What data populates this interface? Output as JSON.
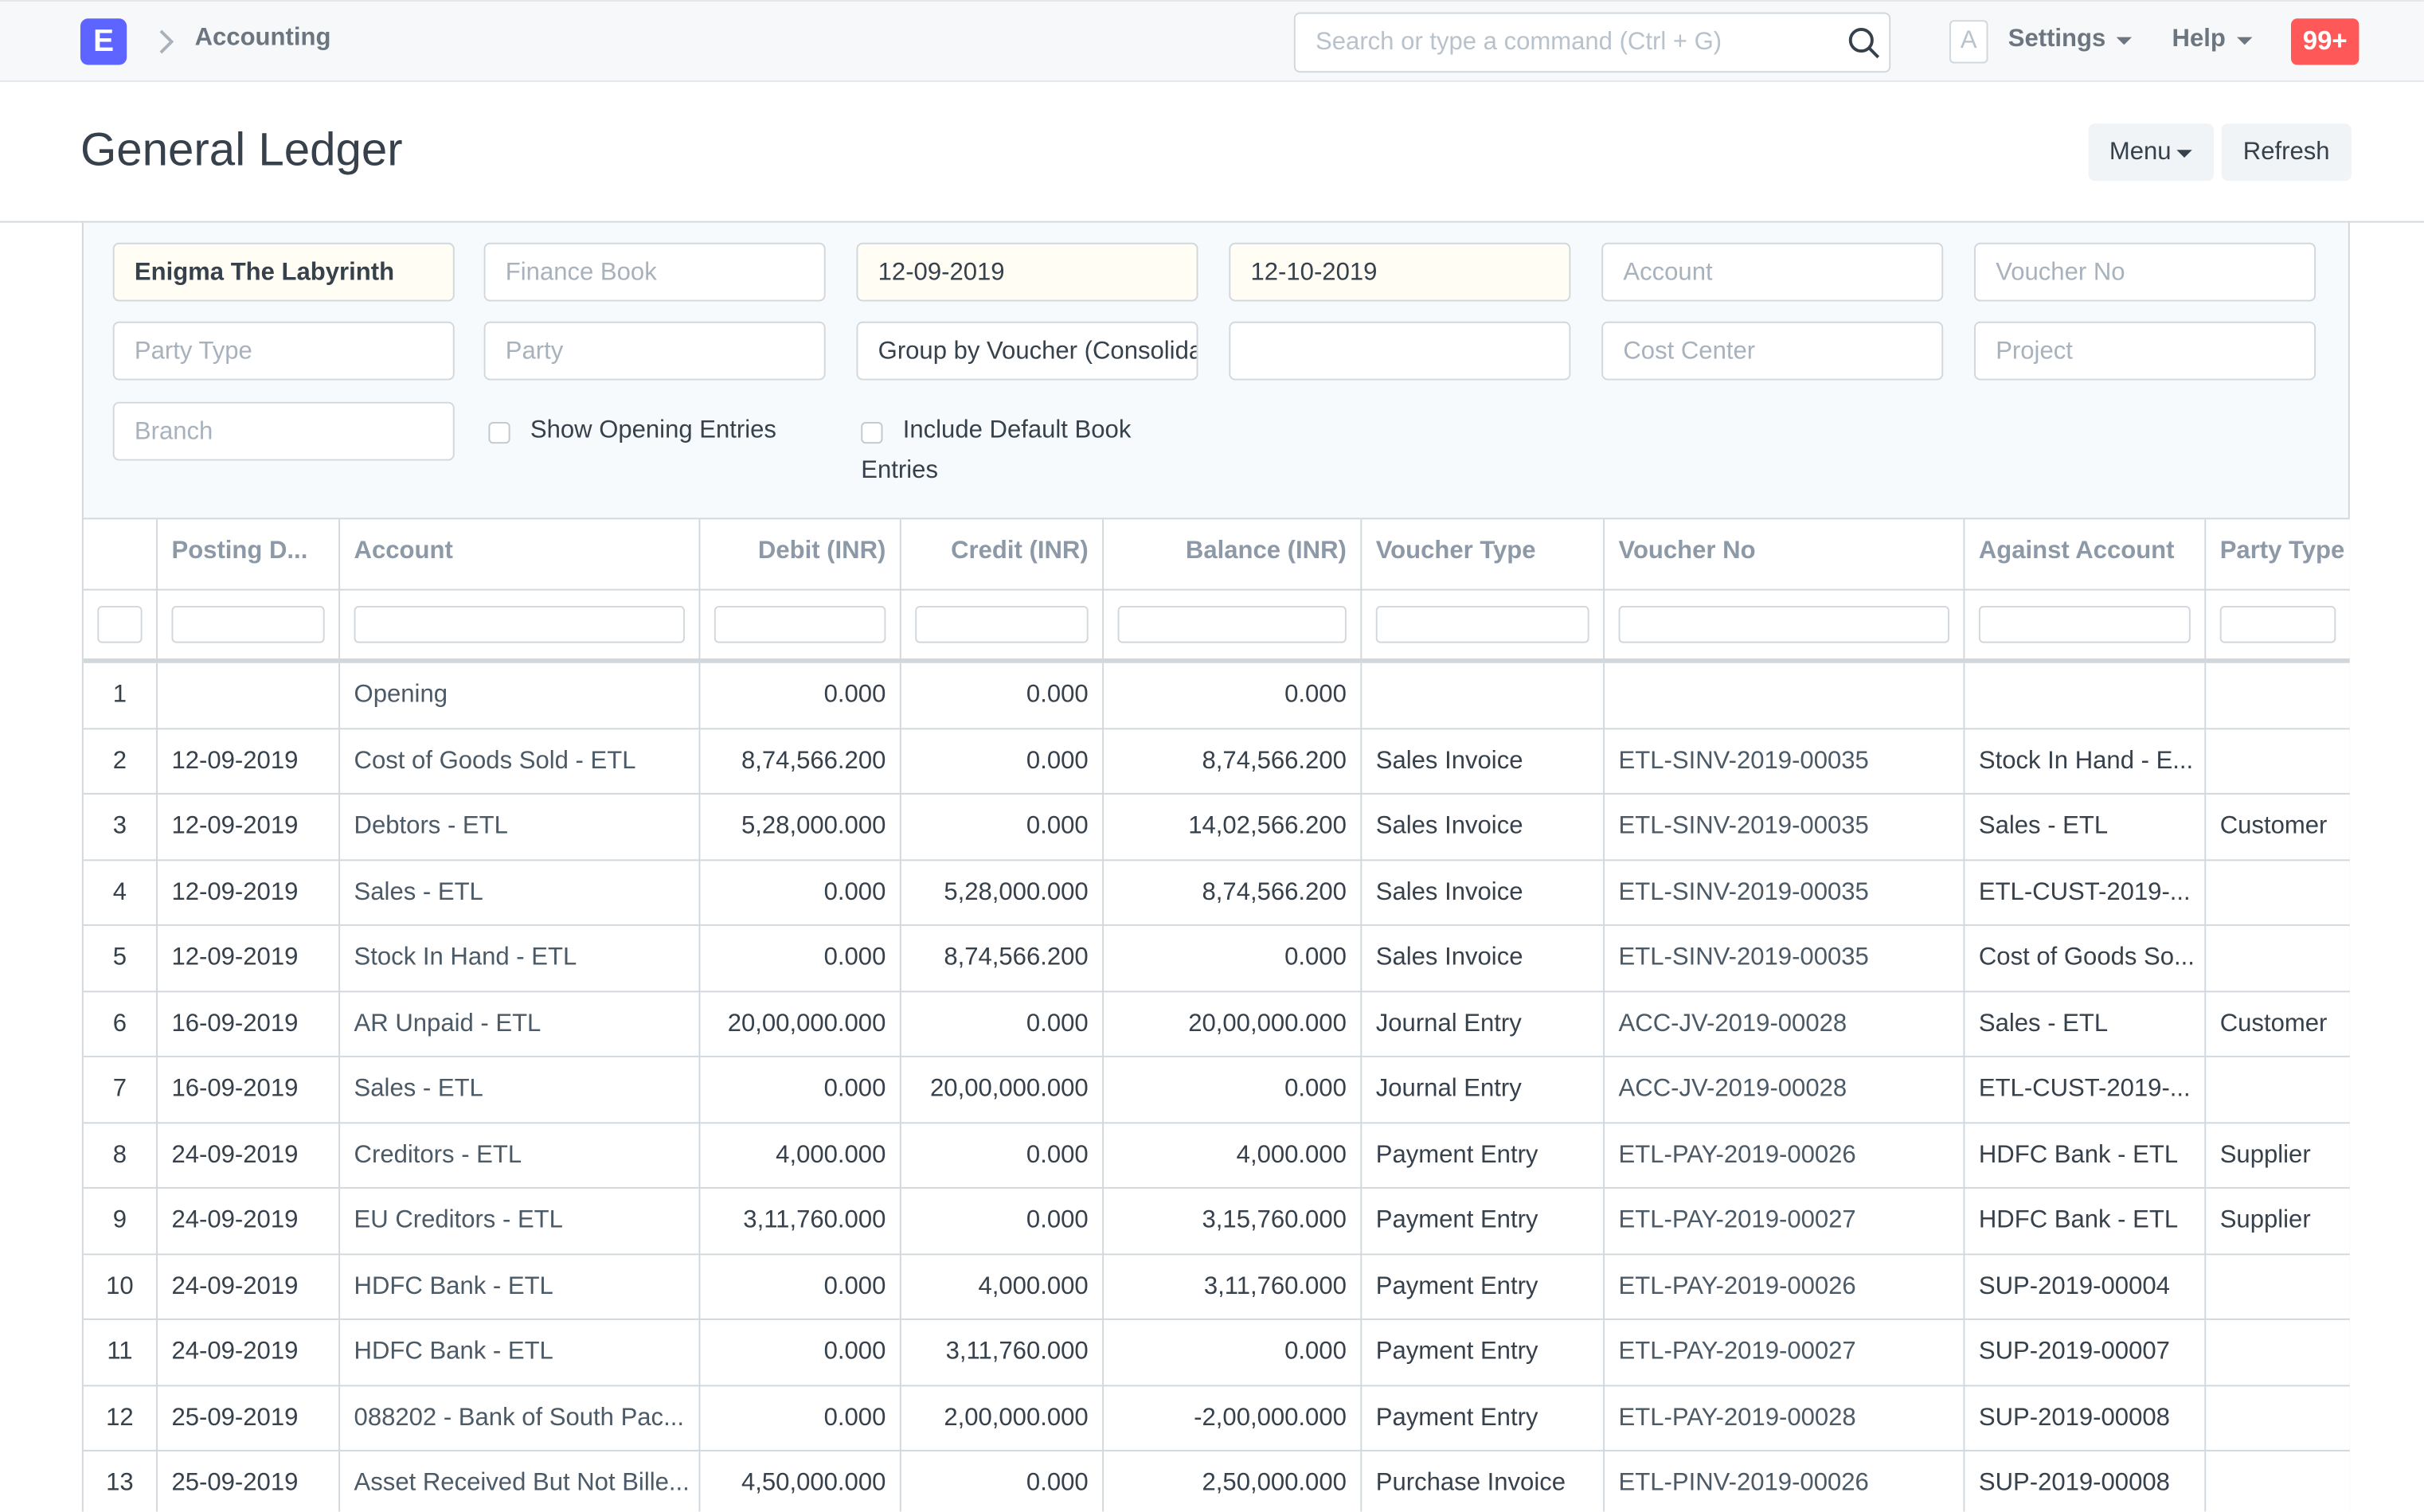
{
  "navbar": {
    "logo": "E",
    "breadcrumb": "Accounting",
    "search_placeholder": "Search or type a command (Ctrl + G)",
    "avatar": "A",
    "settings": "Settings",
    "help": "Help",
    "notifications": "99+"
  },
  "page": {
    "title": "General Ledger",
    "buttons": [
      "Menu",
      "Refresh"
    ]
  },
  "filters": {
    "company": "Enigma The Labyrinth",
    "finance_book": "Finance Book",
    "from_date": "12-09-2019",
    "to_date": "12-10-2019",
    "account": "Account",
    "voucher_no": "Voucher No",
    "party_type": "Party Type",
    "party": "Party",
    "group_by": "Group by Voucher (Consolidated)",
    "cost_center": "Cost Center",
    "project": "Project",
    "branch": "Branch",
    "checkboxes": [
      "Show Opening Entries",
      "Include Default Book Entries"
    ]
  },
  "table": {
    "columns": [
      "Posting D...",
      "Account",
      "Debit (INR)",
      "Credit (INR)",
      "Balance (INR)",
      "Voucher Type",
      "Voucher No",
      "Against Account",
      "Party Type"
    ],
    "rows": [
      [
        "1",
        null,
        "Opening",
        "0.000",
        "0.000",
        "0.000",
        null,
        null,
        null,
        null
      ],
      [
        "2",
        "12-09-2019",
        "Cost of Goods Sold - ETL",
        "8,74,566.200",
        "0.000",
        "8,74,566.200",
        "Sales Invoice",
        "ETL-SINV-2019-00035",
        "Stock In Hand - E...",
        null
      ],
      [
        "3",
        "12-09-2019",
        "Debtors - ETL",
        "5,28,000.000",
        "0.000",
        "14,02,566.200",
        "Sales Invoice",
        "ETL-SINV-2019-00035",
        "Sales - ETL",
        "Customer"
      ],
      [
        "4",
        "12-09-2019",
        "Sales - ETL",
        "0.000",
        "5,28,000.000",
        "8,74,566.200",
        "Sales Invoice",
        "ETL-SINV-2019-00035",
        "ETL-CUST-2019-...",
        null
      ],
      [
        "5",
        "12-09-2019",
        "Stock In Hand - ETL",
        "0.000",
        "8,74,566.200",
        "0.000",
        "Sales Invoice",
        "ETL-SINV-2019-00035",
        "Cost of Goods So...",
        null
      ],
      [
        "6",
        "16-09-2019",
        "AR Unpaid - ETL",
        "20,00,000.000",
        "0.000",
        "20,00,000.000",
        "Journal Entry",
        "ACC-JV-2019-00028",
        "Sales - ETL",
        "Customer"
      ],
      [
        "7",
        "16-09-2019",
        "Sales - ETL",
        "0.000",
        "20,00,000.000",
        "0.000",
        "Journal Entry",
        "ACC-JV-2019-00028",
        "ETL-CUST-2019-...",
        null
      ],
      [
        "8",
        "24-09-2019",
        "Creditors - ETL",
        "4,000.000",
        "0.000",
        "4,000.000",
        "Payment Entry",
        "ETL-PAY-2019-00026",
        "HDFC Bank - ETL",
        "Supplier"
      ],
      [
        "9",
        "24-09-2019",
        "EU Creditors - ETL",
        "3,11,760.000",
        "0.000",
        "3,15,760.000",
        "Payment Entry",
        "ETL-PAY-2019-00027",
        "HDFC Bank - ETL",
        "Supplier"
      ],
      [
        "10",
        "24-09-2019",
        "HDFC Bank - ETL",
        "0.000",
        "4,000.000",
        "3,11,760.000",
        "Payment Entry",
        "ETL-PAY-2019-00026",
        "SUP-2019-00004",
        null
      ],
      [
        "11",
        "24-09-2019",
        "HDFC Bank - ETL",
        "0.000",
        "3,11,760.000",
        "0.000",
        "Payment Entry",
        "ETL-PAY-2019-00027",
        "SUP-2019-00007",
        null
      ],
      [
        "12",
        "25-09-2019",
        "088202 - Bank of South Pac...",
        "0.000",
        "2,00,000.000",
        "-2,00,000.000",
        "Payment Entry",
        "ETL-PAY-2019-00028",
        "SUP-2019-00008",
        null
      ],
      [
        "13",
        "25-09-2019",
        "Asset Received But Not Bille...",
        "4,50,000.000",
        "0.000",
        "2,50,000.000",
        "Purchase Invoice",
        "ETL-PINV-2019-00026",
        "SUP-2019-00008",
        null
      ]
    ]
  }
}
